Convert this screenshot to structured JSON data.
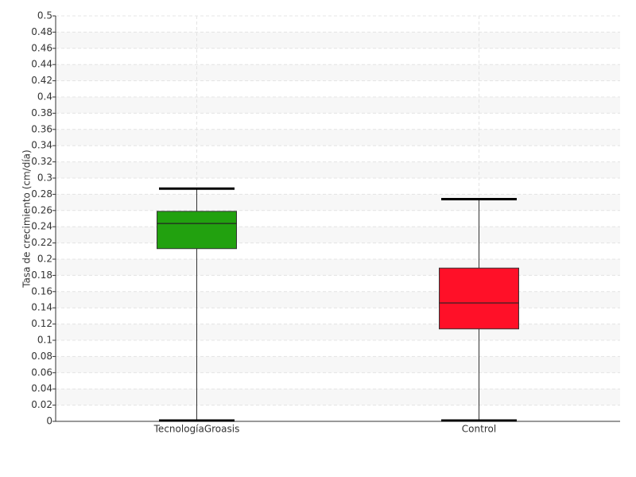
{
  "chart_data": {
    "type": "box",
    "y_label": "Tasa de crecimiento (cm/día)",
    "categories": [
      "TecnologíaGroasis",
      "Control"
    ],
    "boxes": [
      {
        "min": 0,
        "q1": 0.213,
        "median": 0.244,
        "q3": 0.259,
        "max": 0.287,
        "color": "#22a10f"
      },
      {
        "min": 0,
        "q1": 0.114,
        "median": 0.146,
        "q3": 0.189,
        "max": 0.274,
        "color": "#ff1028"
      }
    ],
    "ylim": [
      0,
      0.5
    ],
    "yticks": [
      0,
      0.02,
      0.04,
      0.06,
      0.08,
      0.1,
      0.12,
      0.14,
      0.16,
      0.18,
      0.2,
      0.22,
      0.24,
      0.26,
      0.28,
      0.3,
      0.32,
      0.34,
      0.36,
      0.38,
      0.4,
      0.42,
      0.44,
      0.46,
      0.48,
      0.5
    ],
    "grid": true
  }
}
